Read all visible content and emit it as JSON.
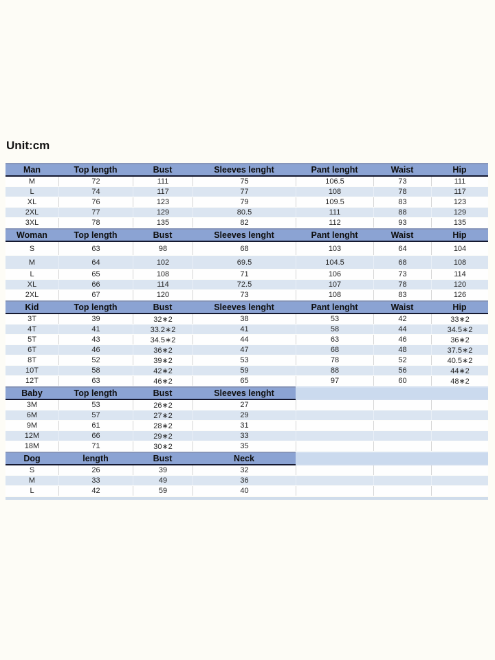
{
  "page": {
    "unit_label": "Unit:cm"
  },
  "colors": {
    "header_band": "#8ba3d3",
    "header_underline": "#14182f",
    "header_extension": "#cbdaee",
    "stripe_row": "#dbe5f1",
    "white_row": "#fefefe",
    "background": "#fdfcf6"
  },
  "table": {
    "sections": [
      {
        "name": "Man",
        "headers": [
          "Man",
          "Top length",
          "Bust",
          "Sleeves lenght",
          "Pant lenght",
          "Waist",
          "Hip"
        ],
        "rows": [
          [
            "M",
            "72",
            "111",
            "75",
            "106.5",
            "73",
            "111"
          ],
          [
            "L",
            "74",
            "117",
            "77",
            "108",
            "78",
            "117"
          ],
          [
            "XL",
            "76",
            "123",
            "79",
            "109.5",
            "83",
            "123"
          ],
          [
            "2XL",
            "77",
            "129",
            "80.5",
            "111",
            "88",
            "129"
          ],
          [
            "3XL",
            "78",
            "135",
            "82",
            "112",
            "93",
            "135"
          ]
        ]
      },
      {
        "name": "Woman",
        "headers": [
          "Woman",
          "Top length",
          "Bust",
          "Sleeves lenght",
          "Pant lenght",
          "Waist",
          "Hip"
        ],
        "tall_rows": [
          0,
          1
        ],
        "rows": [
          [
            "S",
            "63",
            "98",
            "68",
            "103",
            "64",
            "104"
          ],
          [
            "M",
            "64",
            "102",
            "69.5",
            "104.5",
            "68",
            "108"
          ],
          [
            "L",
            "65",
            "108",
            "71",
            "106",
            "73",
            "114"
          ],
          [
            "XL",
            "66",
            "114",
            "72.5",
            "107",
            "78",
            "120"
          ],
          [
            "2XL",
            "67",
            "120",
            "73",
            "108",
            "83",
            "126"
          ]
        ]
      },
      {
        "name": "Kid",
        "headers": [
          "Kid",
          "Top length",
          "Bust",
          "Sleeves lenght",
          "Pant lenght",
          "Waist",
          "Hip"
        ],
        "rows": [
          [
            "3T",
            "39",
            "32∗2",
            "38",
            "53",
            "42",
            "33∗2"
          ],
          [
            "4T",
            "41",
            "33.2∗2",
            "41",
            "58",
            "44",
            "34.5∗2"
          ],
          [
            "5T",
            "43",
            "34.5∗2",
            "44",
            "63",
            "46",
            "36∗2"
          ],
          [
            "6T",
            "46",
            "36∗2",
            "47",
            "68",
            "48",
            "37.5∗2"
          ],
          [
            "8T",
            "52",
            "39∗2",
            "53",
            "78",
            "52",
            "40.5∗2"
          ],
          [
            "10T",
            "58",
            "42∗2",
            "59",
            "88",
            "56",
            "44∗2"
          ],
          [
            "12T",
            "63",
            "46∗2",
            "65",
            "97",
            "60",
            "48∗2"
          ]
        ]
      },
      {
        "name": "Baby",
        "headers": [
          "Baby",
          "Top length",
          "Bust",
          "Sleeves lenght"
        ],
        "rows": [
          [
            "3M",
            "53",
            "26∗2",
            "27",
            "",
            "",
            ""
          ],
          [
            "6M",
            "57",
            "27∗2",
            "29",
            "",
            "",
            ""
          ],
          [
            "9M",
            "61",
            "28∗2",
            "31",
            "",
            "",
            ""
          ],
          [
            "12M",
            "66",
            "29∗2",
            "33",
            "",
            "",
            ""
          ],
          [
            "18M",
            "71",
            "30∗2",
            "35",
            "",
            "",
            ""
          ]
        ]
      },
      {
        "name": "Dog",
        "headers": [
          "Dog",
          "length",
          "Bust",
          "Neck"
        ],
        "rows": [
          [
            "S",
            "26",
            "39",
            "32",
            "",
            "",
            ""
          ],
          [
            "M",
            "33",
            "49",
            "36",
            "",
            "",
            ""
          ],
          [
            "L",
            "42",
            "59",
            "40",
            "",
            "",
            ""
          ]
        ]
      }
    ]
  }
}
